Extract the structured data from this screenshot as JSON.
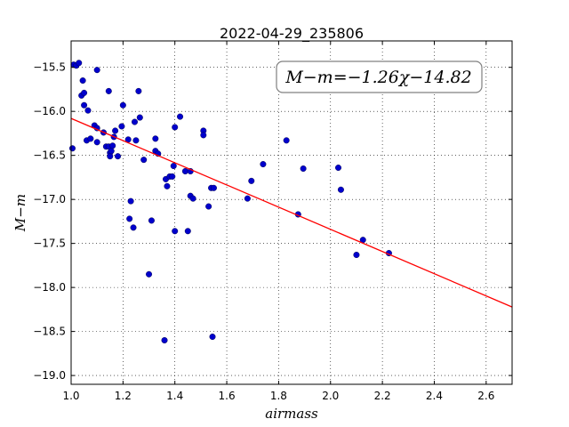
{
  "chart_data": {
    "type": "scatter",
    "title": "2022-04-29_235806",
    "xlabel": "airmass",
    "ylabel": "M−m",
    "xlim": [
      1.0,
      2.7
    ],
    "ylim": [
      -19.1,
      -15.2
    ],
    "y_inverted": true,
    "x_ticks": [
      1.0,
      1.2,
      1.4,
      1.6,
      1.8,
      2.0,
      2.2,
      2.4,
      2.6
    ],
    "x_tick_labels": [
      "1.0",
      "1.2",
      "1.4",
      "1.6",
      "1.8",
      "2.0",
      "2.2",
      "2.4",
      "2.6"
    ],
    "y_ticks": [
      -15.5,
      -16.0,
      -16.5,
      -17.0,
      -17.5,
      -18.0,
      -18.5,
      -19.0
    ],
    "y_tick_labels": [
      "−15.5",
      "−16.0",
      "−16.5",
      "−17.0",
      "−17.5",
      "−18.0",
      "−18.5",
      "−19.0"
    ],
    "grid": true,
    "annotation": "M−m=−1.26χ−14.82",
    "fit": {
      "slope": -1.26,
      "intercept": -14.82,
      "color": "#ff0000"
    },
    "point_color": "#0000cc",
    "points": [
      [
        1.005,
        -16.42
      ],
      [
        1.01,
        -15.47
      ],
      [
        1.02,
        -15.48
      ],
      [
        1.03,
        -15.45
      ],
      [
        1.04,
        -15.82
      ],
      [
        1.045,
        -15.65
      ],
      [
        1.05,
        -15.93
      ],
      [
        1.05,
        -15.79
      ],
      [
        1.06,
        -16.33
      ],
      [
        1.065,
        -15.99
      ],
      [
        1.075,
        -16.31
      ],
      [
        1.09,
        -16.16
      ],
      [
        1.1,
        -15.53
      ],
      [
        1.1,
        -16.19
      ],
      [
        1.1,
        -16.35
      ],
      [
        1.125,
        -16.24
      ],
      [
        1.135,
        -16.4
      ],
      [
        1.145,
        -15.77
      ],
      [
        1.145,
        -16.4
      ],
      [
        1.15,
        -16.47
      ],
      [
        1.15,
        -16.51
      ],
      [
        1.155,
        -16.45
      ],
      [
        1.16,
        -16.39
      ],
      [
        1.165,
        -16.29
      ],
      [
        1.17,
        -16.22
      ],
      [
        1.18,
        -16.51
      ],
      [
        1.195,
        -16.17
      ],
      [
        1.2,
        -15.93
      ],
      [
        1.22,
        -16.32
      ],
      [
        1.225,
        -17.22
      ],
      [
        1.23,
        -17.02
      ],
      [
        1.24,
        -17.32
      ],
      [
        1.245,
        -16.12
      ],
      [
        1.25,
        -16.33
      ],
      [
        1.26,
        -15.77
      ],
      [
        1.265,
        -16.07
      ],
      [
        1.28,
        -16.55
      ],
      [
        1.3,
        -17.85
      ],
      [
        1.31,
        -17.24
      ],
      [
        1.325,
        -16.31
      ],
      [
        1.325,
        -16.45
      ],
      [
        1.335,
        -16.48
      ],
      [
        1.36,
        -18.6
      ],
      [
        1.365,
        -16.77
      ],
      [
        1.37,
        -16.85
      ],
      [
        1.38,
        -16.74
      ],
      [
        1.39,
        -16.74
      ],
      [
        1.395,
        -16.62
      ],
      [
        1.4,
        -16.18
      ],
      [
        1.4,
        -17.36
      ],
      [
        1.42,
        -16.06
      ],
      [
        1.44,
        -16.68
      ],
      [
        1.45,
        -17.36
      ],
      [
        1.46,
        -16.96
      ],
      [
        1.46,
        -16.68
      ],
      [
        1.47,
        -16.99
      ],
      [
        1.51,
        -16.22
      ],
      [
        1.51,
        -16.27
      ],
      [
        1.53,
        -17.08
      ],
      [
        1.54,
        -16.87
      ],
      [
        1.545,
        -18.56
      ],
      [
        1.55,
        -16.87
      ],
      [
        1.68,
        -16.99
      ],
      [
        1.695,
        -16.79
      ],
      [
        1.74,
        -16.6
      ],
      [
        1.83,
        -16.33
      ],
      [
        1.875,
        -17.17
      ],
      [
        1.895,
        -16.65
      ],
      [
        2.03,
        -16.64
      ],
      [
        2.04,
        -16.89
      ],
      [
        2.1,
        -17.63
      ],
      [
        2.125,
        -17.46
      ],
      [
        2.225,
        -17.61
      ]
    ]
  }
}
